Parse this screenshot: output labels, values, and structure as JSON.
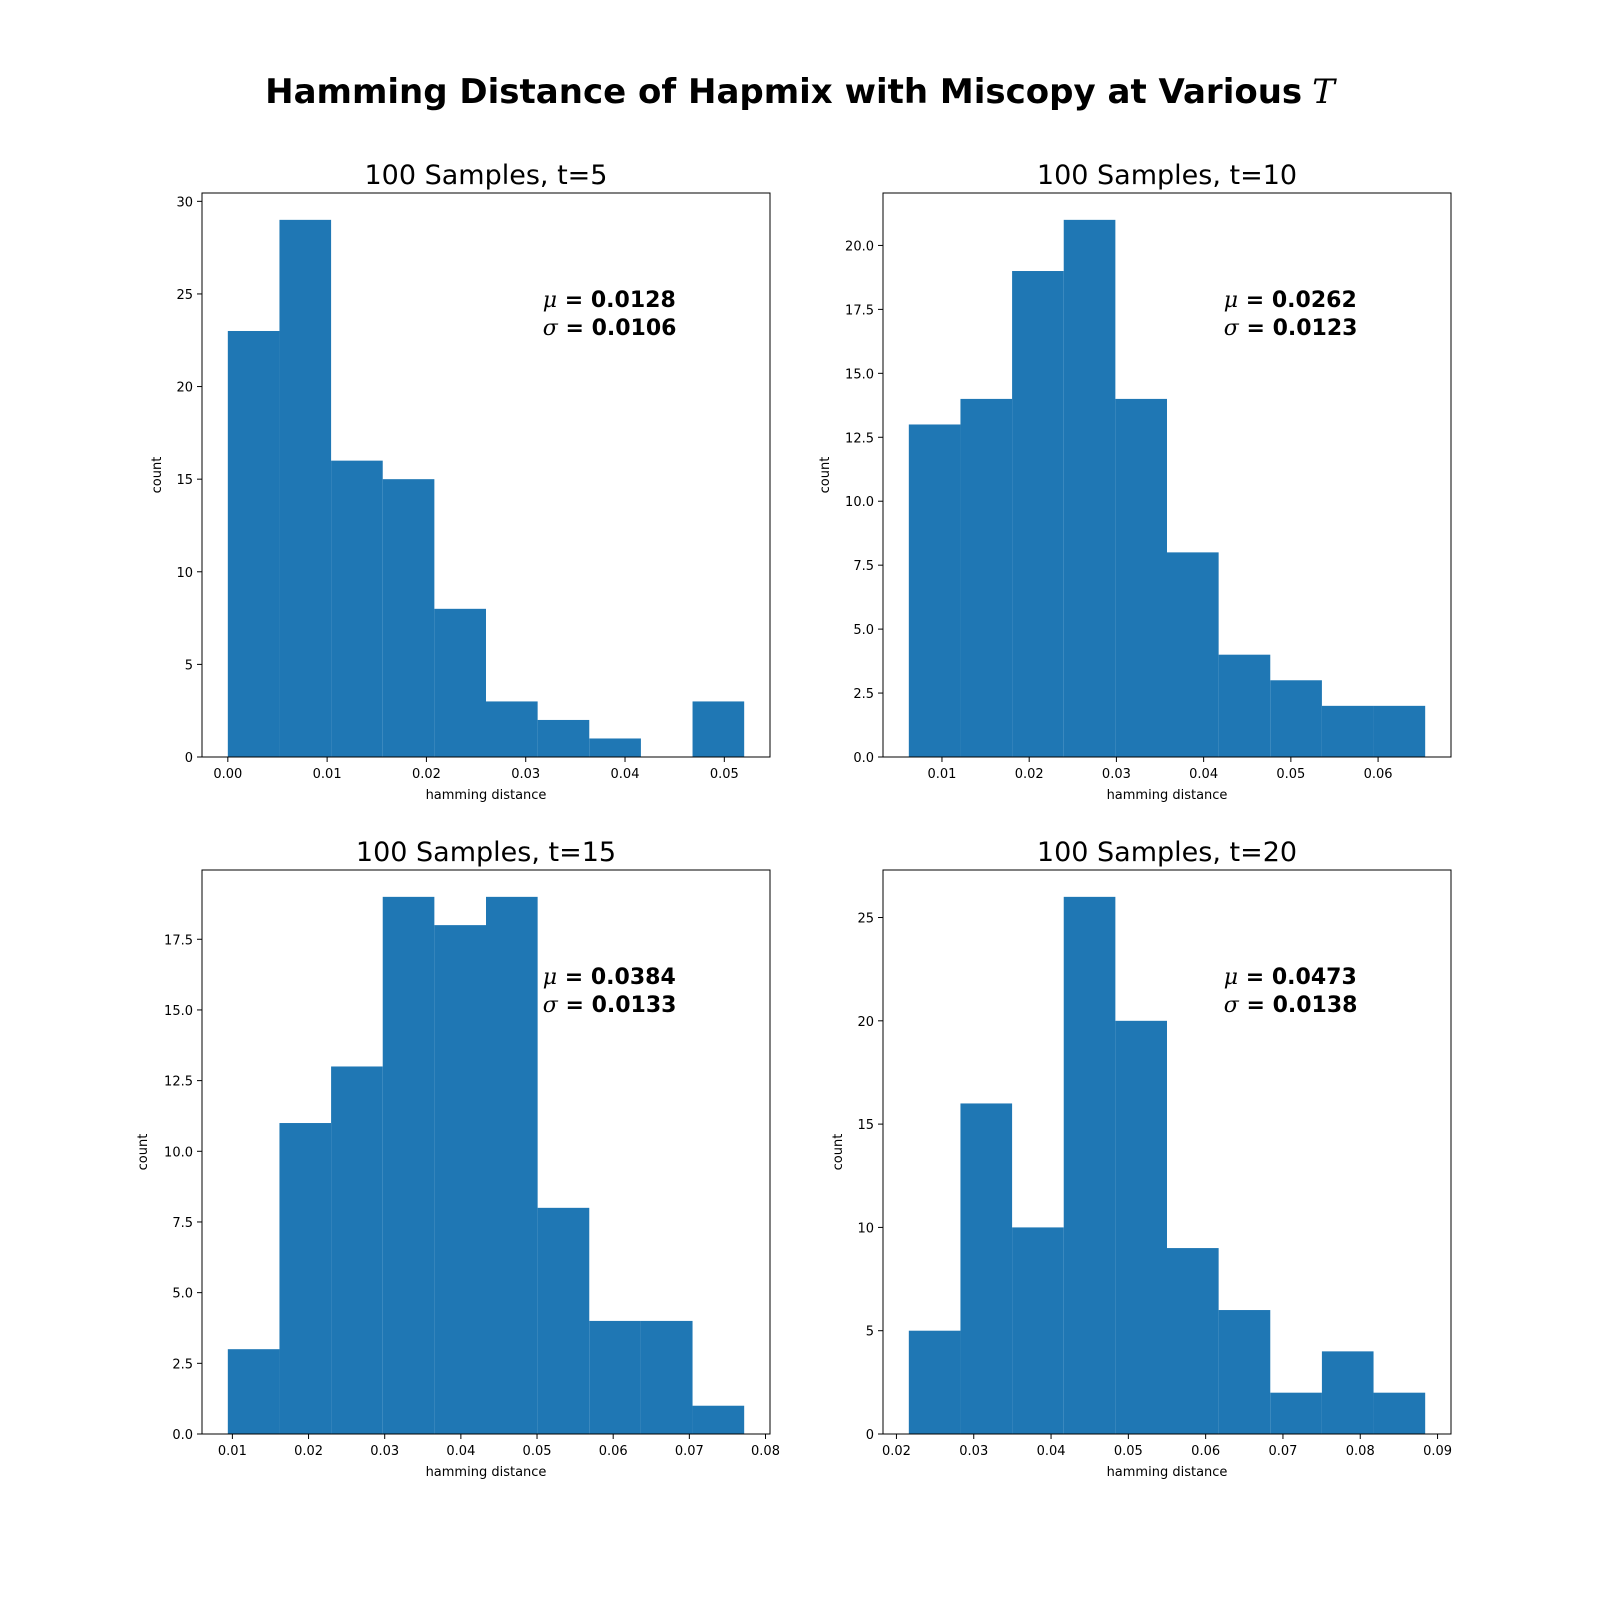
{
  "figure": {
    "title": "Hamming Distance of Hapmix with Miscopy at Various",
    "title_symbol": "T"
  },
  "chart_data": [
    {
      "type": "bar",
      "title": "100 Samples, t=5",
      "xlabel": "hamming distance",
      "ylabel": "count",
      "bin_edges": [
        0.0,
        0.0052,
        0.0104,
        0.0156,
        0.0208,
        0.026,
        0.0312,
        0.0364,
        0.0416,
        0.0468,
        0.052
      ],
      "values": [
        23,
        29,
        16,
        15,
        8,
        3,
        2,
        1,
        0,
        3
      ],
      "xlim": [
        -0.0026,
        0.0546
      ],
      "ylim": [
        0,
        30.45
      ],
      "xticks": [
        0.0,
        0.01,
        0.02,
        0.03,
        0.04,
        0.05
      ],
      "xtick_labels": [
        "0.00",
        "0.01",
        "0.02",
        "0.03",
        "0.04",
        "0.05"
      ],
      "yticks": [
        0,
        5,
        10,
        15,
        20,
        25,
        30
      ],
      "ytick_labels": [
        "0",
        "5",
        "10",
        "15",
        "20",
        "25",
        "30"
      ],
      "mu_label": "μ",
      "mu_value": "0.0128",
      "sigma_label": "σ",
      "sigma_value": "0.0106",
      "color": "#1f77b4"
    },
    {
      "type": "bar",
      "title": "100 Samples, t=10",
      "xlabel": "hamming distance",
      "ylabel": "count",
      "bin_edges": [
        0.0062,
        0.01212,
        0.01804,
        0.02396,
        0.02988,
        0.0358,
        0.04172,
        0.04764,
        0.05356,
        0.05948,
        0.0654
      ],
      "values": [
        13,
        14,
        19,
        21,
        14,
        8,
        4,
        3,
        2,
        2
      ],
      "xlim": [
        0.00324,
        0.06836
      ],
      "ylim": [
        0,
        22.05
      ],
      "xticks": [
        0.01,
        0.02,
        0.03,
        0.04,
        0.05,
        0.06
      ],
      "xtick_labels": [
        "0.01",
        "0.02",
        "0.03",
        "0.04",
        "0.05",
        "0.06"
      ],
      "yticks": [
        0,
        2.5,
        5,
        7.5,
        10,
        12.5,
        15,
        17.5,
        20
      ],
      "ytick_labels": [
        "0.0",
        "2.5",
        "5.0",
        "7.5",
        "10.0",
        "12.5",
        "15.0",
        "17.5",
        "20.0"
      ],
      "mu_label": "μ",
      "mu_value": "0.0262",
      "sigma_label": "σ",
      "sigma_value": "0.0123",
      "color": "#1f77b4"
    },
    {
      "type": "bar",
      "title": "100 Samples, t=15",
      "xlabel": "hamming distance",
      "ylabel": "count",
      "bin_edges": [
        0.0094,
        0.01618,
        0.02296,
        0.02974,
        0.03652,
        0.0433,
        0.05008,
        0.05686,
        0.06364,
        0.07042,
        0.0772
      ],
      "values": [
        3,
        11,
        13,
        19,
        18,
        19,
        8,
        4,
        4,
        1
      ],
      "xlim": [
        0.00601,
        0.08059
      ],
      "ylim": [
        0,
        19.95
      ],
      "xticks": [
        0.01,
        0.02,
        0.03,
        0.04,
        0.05,
        0.06,
        0.07,
        0.08
      ],
      "xtick_labels": [
        "0.01",
        "0.02",
        "0.03",
        "0.04",
        "0.05",
        "0.06",
        "0.07",
        "0.08"
      ],
      "yticks": [
        0,
        2.5,
        5,
        7.5,
        10,
        12.5,
        15,
        17.5
      ],
      "ytick_labels": [
        "0.0",
        "2.5",
        "5.0",
        "7.5",
        "10.0",
        "12.5",
        "15.0",
        "17.5"
      ],
      "mu_label": "μ",
      "mu_value": "0.0384",
      "sigma_label": "σ",
      "sigma_value": "0.0133",
      "color": "#1f77b4"
    },
    {
      "type": "bar",
      "title": "100 Samples, t=20",
      "xlabel": "hamming distance",
      "ylabel": "count",
      "bin_edges": [
        0.0216,
        0.02828,
        0.03496,
        0.04164,
        0.04832,
        0.055,
        0.06168,
        0.06836,
        0.07504,
        0.08172,
        0.0884
      ],
      "values": [
        5,
        16,
        10,
        26,
        20,
        9,
        6,
        2,
        4,
        2
      ],
      "xlim": [
        0.01826,
        0.09174
      ],
      "ylim": [
        0,
        27.3
      ],
      "xticks": [
        0.02,
        0.03,
        0.04,
        0.05,
        0.06,
        0.07,
        0.08,
        0.09
      ],
      "xtick_labels": [
        "0.02",
        "0.03",
        "0.04",
        "0.05",
        "0.06",
        "0.07",
        "0.08",
        "0.09"
      ],
      "yticks": [
        0,
        5,
        10,
        15,
        20,
        25
      ],
      "ytick_labels": [
        "0",
        "5",
        "10",
        "15",
        "20",
        "25"
      ],
      "mu_label": "μ",
      "mu_value": "0.0473",
      "sigma_label": "σ",
      "sigma_value": "0.0138",
      "color": "#1f77b4"
    }
  ]
}
